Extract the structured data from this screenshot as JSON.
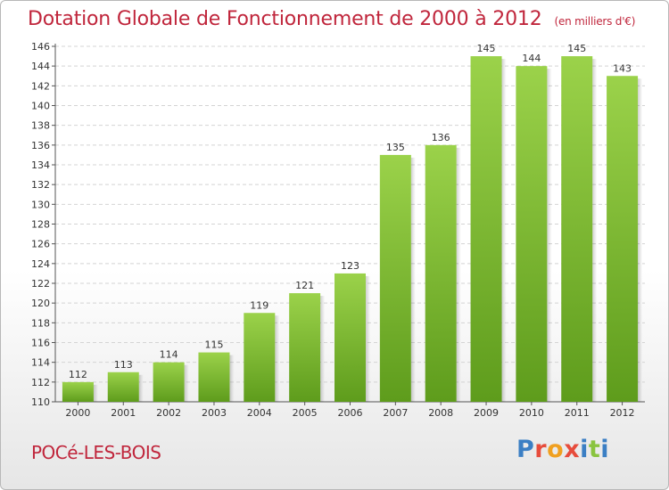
{
  "header": {
    "title": "Dotation Globale de Fonctionnement de 2000 à 2012",
    "unit": "(en milliers d'€)"
  },
  "commune": "POCé-LES-BOIS",
  "logo": {
    "letters": [
      "P",
      "r",
      "o",
      "x",
      "i",
      "t",
      "i"
    ]
  },
  "colors": {
    "title": "#c0263c",
    "bar_top": "#9bd24a",
    "bar_bottom": "#5e9c1c"
  },
  "chart_data": {
    "type": "bar",
    "title": "Dotation Globale de Fonctionnement de 2000 à 2012",
    "ylabel": "(en milliers d'€)",
    "categories": [
      "2000",
      "2001",
      "2002",
      "2003",
      "2004",
      "2005",
      "2006",
      "2007",
      "2008",
      "2009",
      "2010",
      "2011",
      "2012"
    ],
    "values": [
      112,
      113,
      114,
      115,
      119,
      121,
      123,
      135,
      136,
      145,
      144,
      145,
      143
    ],
    "ylim": [
      110,
      146
    ],
    "yticks": [
      110,
      112,
      114,
      116,
      118,
      120,
      122,
      124,
      126,
      128,
      130,
      132,
      134,
      136,
      138,
      140,
      142,
      144,
      146
    ],
    "grid": true,
    "data_labels": true
  }
}
